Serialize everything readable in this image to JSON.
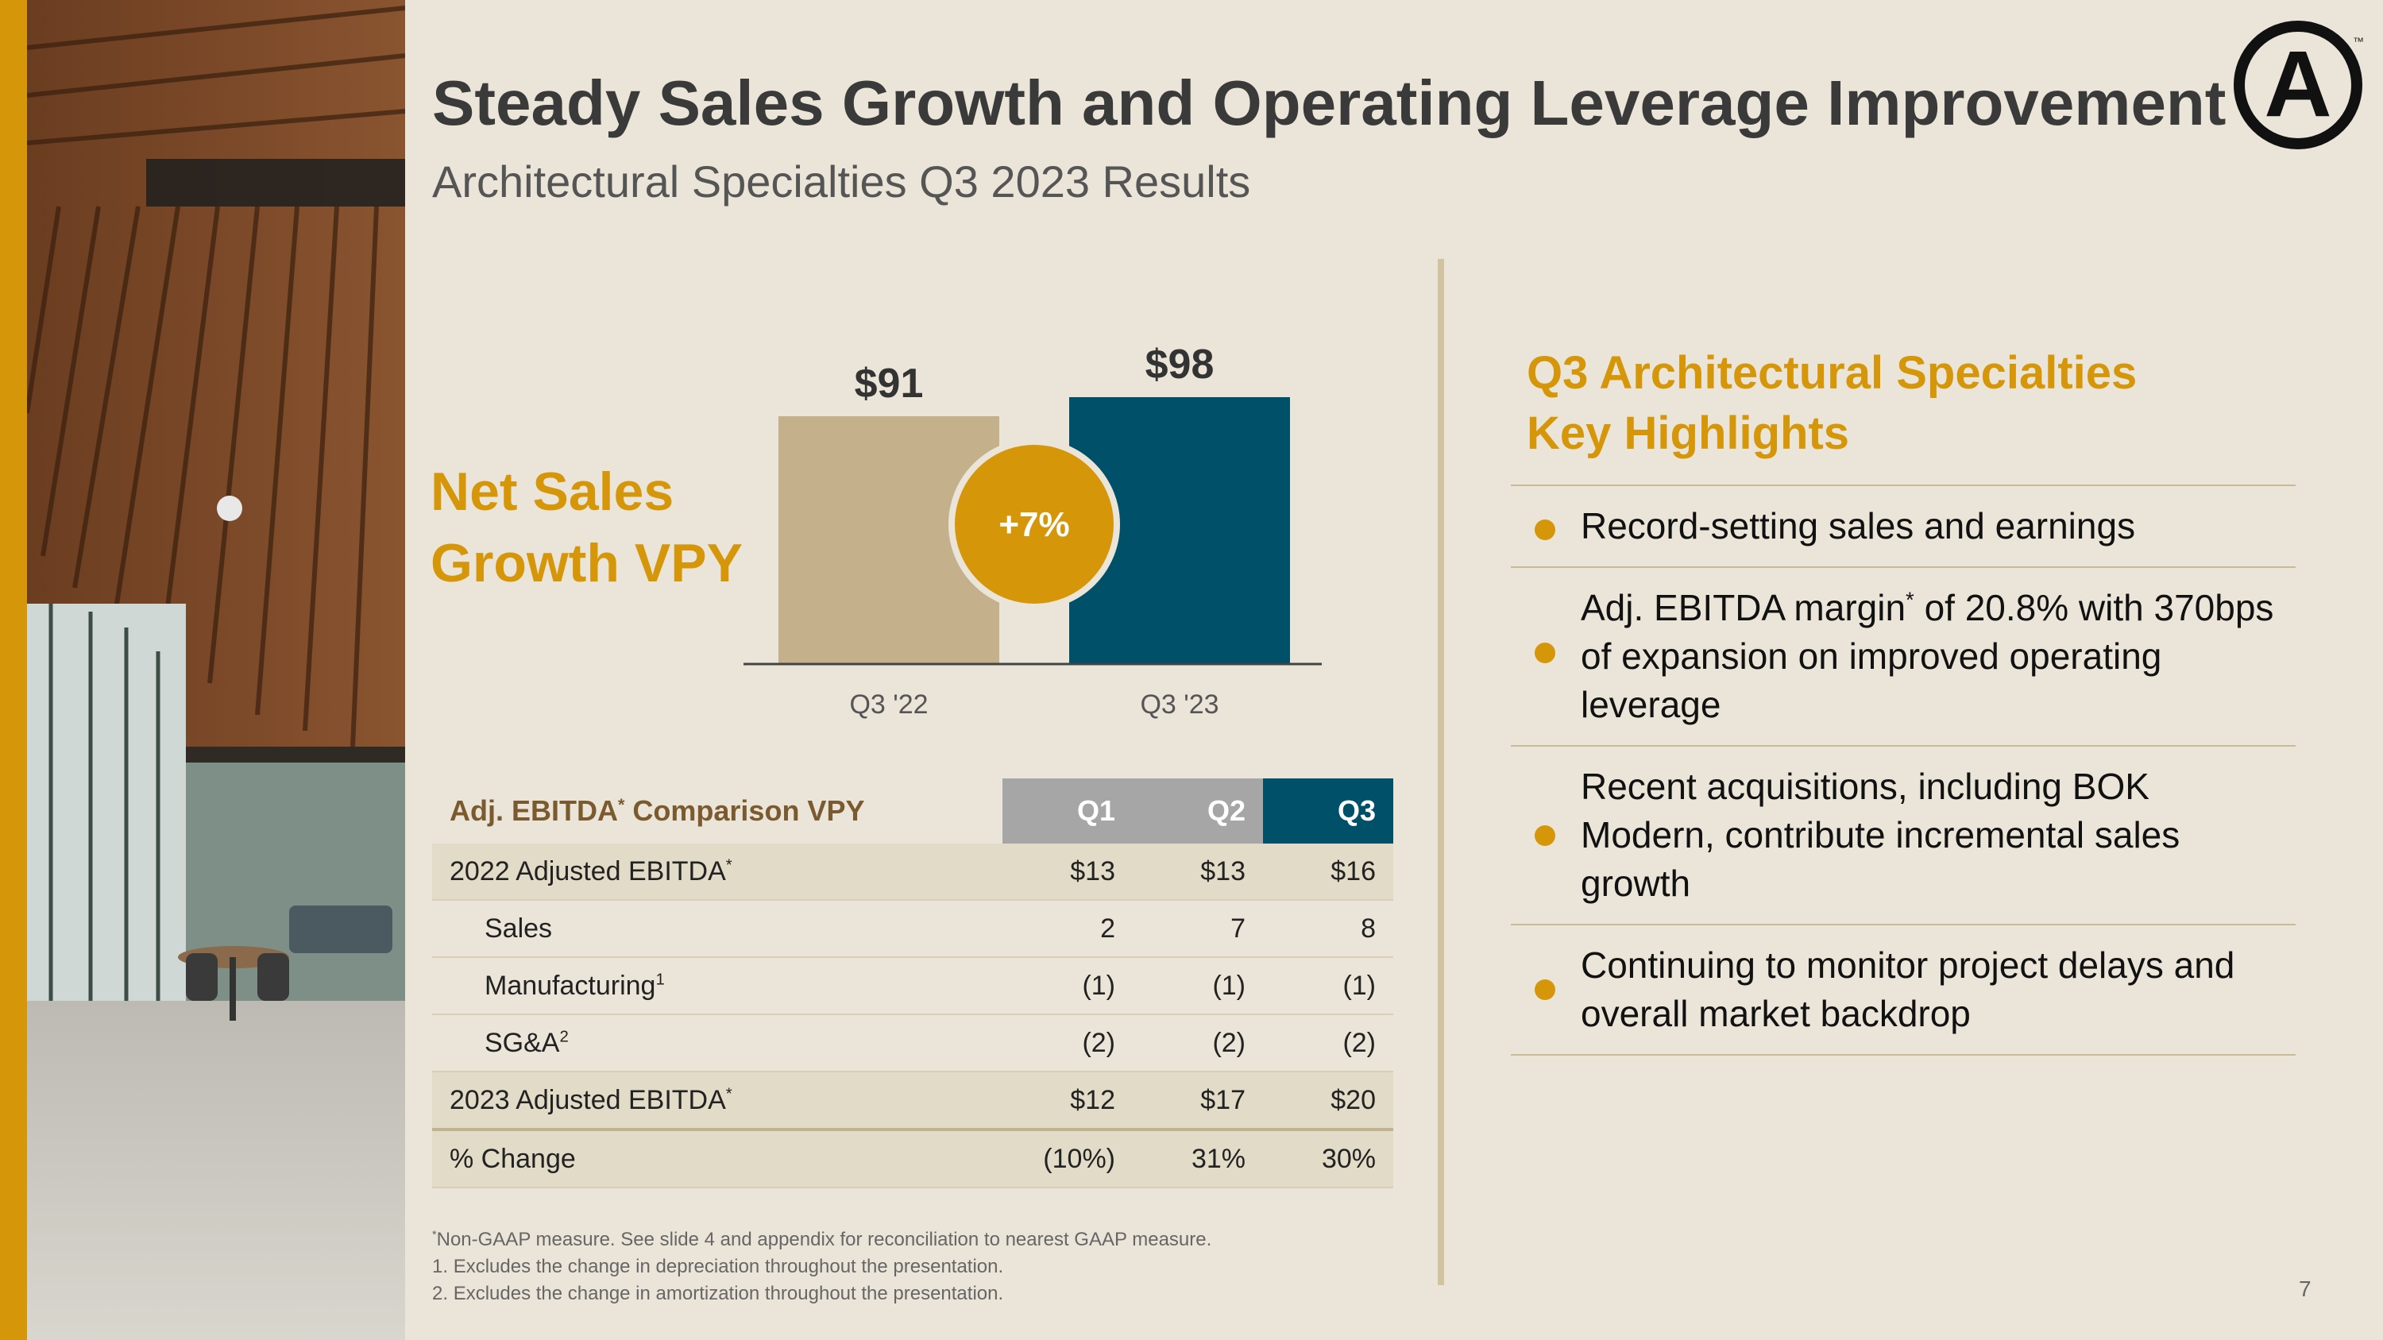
{
  "slide": {
    "title": "Steady Sales Growth and Operating Leverage Improvement",
    "subtitle": "Architectural Specialties Q3 2023 Results",
    "page_number": "7",
    "logo_text": "A",
    "logo_mark": "™"
  },
  "net_sales_label": {
    "line1": "Net Sales",
    "line2": "Growth VPY"
  },
  "chart_data": {
    "type": "bar",
    "title": "Net Sales Growth VPY",
    "categories": [
      "Q3 '22",
      "Q3 '23"
    ],
    "values": [
      91,
      98
    ],
    "value_labels": [
      "$91",
      "$98"
    ],
    "colors": [
      "#c4b08a",
      "#005069"
    ],
    "growth_badge": "+7%",
    "badge_color": "#d6960a",
    "ylim": [
      0,
      98
    ]
  },
  "ebitda_table": {
    "header": {
      "label": "Adj. EBITDA",
      "label_sup": "*",
      "label_rest": " Comparison VPY",
      "cols": [
        "Q1",
        "Q2",
        "Q3"
      ]
    },
    "rows": [
      {
        "label": "2022 Adjusted EBITDA",
        "sup": "*",
        "values": [
          "$13",
          "$13",
          "$16"
        ]
      },
      {
        "label": "Sales",
        "sup": "",
        "values": [
          "2",
          "7",
          "8"
        ]
      },
      {
        "label": "Manufacturing",
        "sup": "1",
        "values": [
          "(1)",
          "(1)",
          "(1)"
        ]
      },
      {
        "label": "SG&A",
        "sup": "2",
        "values": [
          "(2)",
          "(2)",
          "(2)"
        ]
      },
      {
        "label": "2023 Adjusted EBITDA",
        "sup": "*",
        "values": [
          "$12",
          "$17",
          "$20"
        ]
      },
      {
        "label": "% Change",
        "sup": "",
        "values": [
          "(10%)",
          "31%",
          "30%"
        ]
      }
    ]
  },
  "highlights": {
    "title_line1": "Q3 Architectural Specialties",
    "title_line2": "Key Highlights",
    "items": [
      {
        "text": "Record-setting sales and earnings"
      },
      {
        "pre": "Adj. EBITDA margin",
        "sup": "*",
        "post": " of 20.8% with 370bps of expansion on improved operating leverage"
      },
      {
        "text": "Recent acquisitions, including BOK Modern, contribute incremental sales growth"
      },
      {
        "text": "Continuing to monitor project delays and overall market backdrop"
      }
    ]
  },
  "footnotes": {
    "star_mark": "*",
    "star": "Non-GAAP measure. See slide 4 and appendix for reconciliation to nearest GAAP measure.",
    "n1_mark": "1.",
    "n1": "Excludes the change in depreciation throughout the presentation.",
    "n2_mark": "2.",
    "n2": "Excludes the change in amortization throughout the presentation."
  },
  "colors": {
    "gold": "#d6960a",
    "teal": "#005069",
    "tan": "#c4b08a",
    "background": "#eae5d8"
  }
}
